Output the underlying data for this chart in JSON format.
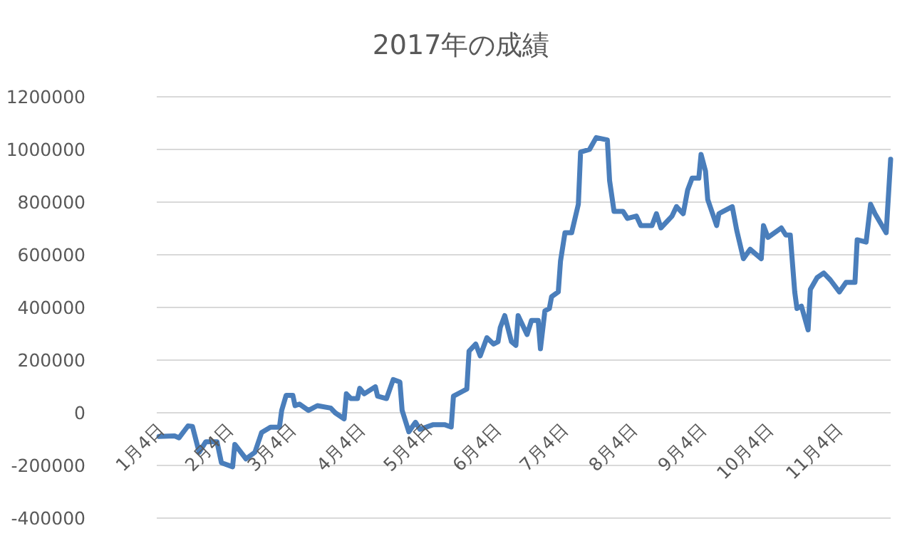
{
  "chart_data": {
    "type": "line",
    "title": "2017年の成績",
    "x": [
      "--01-05",
      "--01-12",
      "--01-14",
      "--01-18",
      "--01-20",
      "--01-23",
      "--01-26",
      "--01-31",
      "--02-02",
      "--02-07",
      "--02-08",
      "--02-13",
      "--02-17",
      "--02-20",
      "--02-24",
      "--02-28",
      "--03-01",
      "--03-03",
      "--03-06",
      "--03-07",
      "--03-09",
      "--03-13",
      "--03-17",
      "--03-23",
      "--03-25",
      "--03-29",
      "--03-30",
      "--04-01",
      "--04-04",
      "--04-05",
      "--04-07",
      "--04-12",
      "--04-13",
      "--04-17",
      "--04-20",
      "--04-23",
      "--04-24",
      "--04-27",
      "--04-30",
      "--05-02",
      "--05-08",
      "--05-13",
      "--05-16",
      "--05-17",
      "--05-21",
      "--05-23",
      "--05-24",
      "--05-27",
      "--05-29",
      "--06-01",
      "--06-04",
      "--06-06",
      "--06-07",
      "--06-09",
      "--06-12",
      "--06-14",
      "--06-15",
      "--06-19",
      "--06-21",
      "--06-24",
      "--06-25",
      "--06-27",
      "--06-29",
      "--06-30",
      "--07-03",
      "--07-04",
      "--07-06",
      "--07-09",
      "--07-12",
      "--07-13",
      "--07-17",
      "--07-20",
      "--07-25",
      "--07-26",
      "--07-28",
      "--08-01",
      "--08-03",
      "--08-07",
      "--08-09",
      "--08-14",
      "--08-16",
      "--08-18",
      "--08-23",
      "--08-25",
      "--08-28",
      "--08-30",
      "--09-01",
      "--09-04",
      "--09-05",
      "--09-07",
      "--09-08",
      "--09-12",
      "--09-13",
      "--09-15",
      "--09-19",
      "--09-21",
      "--09-24",
      "--09-27",
      "--10-02",
      "--10-03",
      "--10-05",
      "--10-11",
      "--10-13",
      "--10-15",
      "--10-17",
      "--10-18",
      "--10-20",
      "--10-23",
      "--10-24",
      "--10-27",
      "--10-30",
      "--11-02",
      "--11-06",
      "--11-09",
      "--11-13",
      "--11-14",
      "--11-18",
      "--11-20",
      "--11-22",
      "--11-27",
      "--11-29"
    ],
    "series": [
      {
        "color": "#4a7ebb",
        "values": [
          -90000,
          -88000,
          -95000,
          -50000,
          -52000,
          -150000,
          -110000,
          -110000,
          -190000,
          -205000,
          -120000,
          -175000,
          -150000,
          -75000,
          -55000,
          -55000,
          9000,
          66000,
          66000,
          27000,
          33000,
          9000,
          27000,
          18000,
          0,
          -23000,
          72000,
          54000,
          54000,
          93000,
          72000,
          99000,
          63000,
          54000,
          126000,
          117000,
          9000,
          -72000,
          -36000,
          -63000,
          -45000,
          -45000,
          -54000,
          63000,
          81000,
          90000,
          234000,
          261000,
          216000,
          285000,
          261000,
          270000,
          324000,
          369000,
          270000,
          256000,
          369000,
          297000,
          351000,
          351000,
          243000,
          387000,
          396000,
          441000,
          459000,
          576000,
          684000,
          684000,
          792000,
          990000,
          1000000,
          1045000,
          1036000,
          882000,
          765000,
          765000,
          738000,
          747000,
          711000,
          711000,
          756000,
          702000,
          747000,
          783000,
          756000,
          846000,
          891000,
          891000,
          981000,
          918000,
          810000,
          711000,
          756000,
          765000,
          783000,
          693000,
          585000,
          621000,
          585000,
          711000,
          666000,
          702000,
          675000,
          675000,
          459000,
          396000,
          405000,
          315000,
          468000,
          513000,
          531000,
          504000,
          459000,
          495000,
          495000,
          657000,
          648000,
          792000,
          756000,
          684000,
          963000
        ]
      }
    ],
    "xlim": [
      "--01-04",
      "--11-29"
    ],
    "xticks": [
      {
        "value": "--01-04",
        "label": "1月4日"
      },
      {
        "value": "--02-04",
        "label": "2月4日"
      },
      {
        "value": "--03-04",
        "label": "3月4日"
      },
      {
        "value": "--04-04",
        "label": "4月4日"
      },
      {
        "value": "--05-04",
        "label": "5月4日"
      },
      {
        "value": "--06-04",
        "label": "6月4日"
      },
      {
        "value": "--07-04",
        "label": "7月4日"
      },
      {
        "value": "--08-04",
        "label": "8月4日"
      },
      {
        "value": "--09-04",
        "label": "9月4日"
      },
      {
        "value": "--10-04",
        "label": "10月4日"
      },
      {
        "value": "--11-04",
        "label": "11月4日"
      }
    ],
    "ylim": [
      -400000,
      1200000
    ],
    "yticks": [
      -400000,
      -200000,
      0,
      200000,
      400000,
      600000,
      800000,
      1000000,
      1200000
    ],
    "grid": "y"
  }
}
